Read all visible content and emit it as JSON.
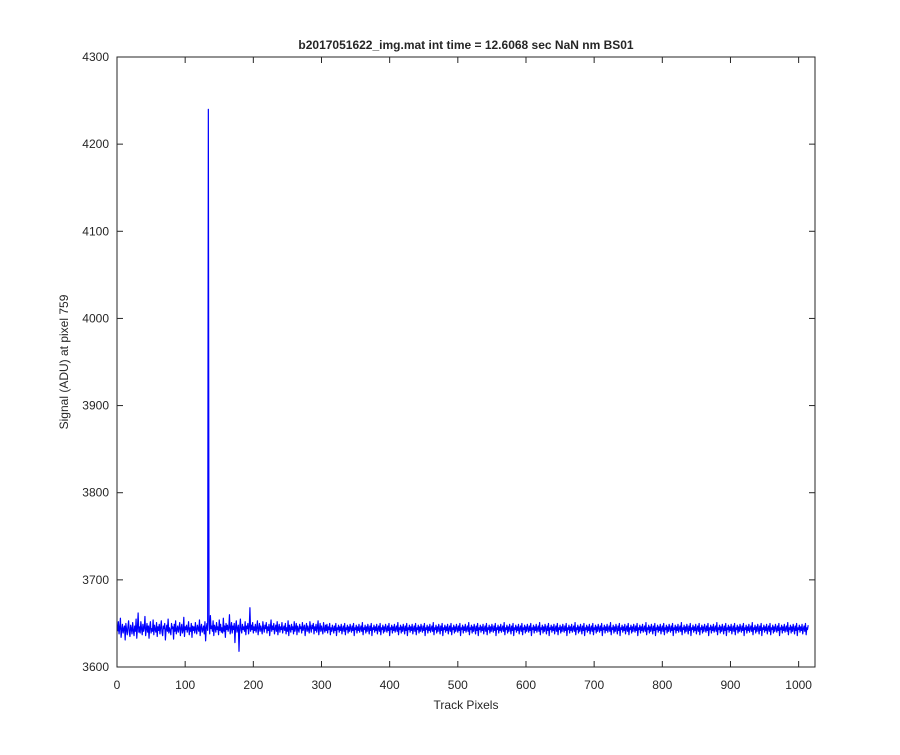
{
  "chart_data": {
    "type": "line",
    "title": "b2017051622_img.mat int time = 12.6068 sec  NaN nm BS01",
    "xlabel": "Track Pixels",
    "ylabel": "Signal (ADU) at pixel 759",
    "xlim": [
      0,
      1024
    ],
    "ylim": [
      3600,
      4300
    ],
    "xticks": [
      0,
      100,
      200,
      300,
      400,
      500,
      600,
      700,
      800,
      900,
      1000
    ],
    "yticks": [
      3600,
      3700,
      3800,
      3900,
      4000,
      4100,
      4200,
      4300
    ],
    "grid": false,
    "legend": "none",
    "line_color": "#0000ff",
    "series": [
      {
        "x_start": 1,
        "x_step": 1,
        "values": [
          3641,
          3652,
          3638,
          3645,
          3656,
          3634,
          3642,
          3649,
          3639,
          3644,
          3647,
          3631,
          3650,
          3643,
          3637,
          3646,
          3653,
          3640,
          3635,
          3648,
          3644,
          3638,
          3651,
          3642,
          3636,
          3647,
          3641,
          3655,
          3633,
          3645,
          3662,
          3640,
          3646,
          3639,
          3652,
          3644,
          3637,
          3649,
          3641,
          3645,
          3658,
          3636,
          3643,
          3650,
          3640,
          3647,
          3633,
          3646,
          3652,
          3639,
          3644,
          3641,
          3654,
          3637,
          3648,
          3643,
          3640,
          3651,
          3635,
          3646,
          3642,
          3649,
          3638,
          3645,
          3653,
          3640,
          3636,
          3647,
          3644,
          3650,
          3631,
          3643,
          3648,
          3641,
          3655,
          3639,
          3645,
          3642,
          3637,
          3650,
          3644,
          3646,
          3632,
          3649,
          3641,
          3653,
          3638,
          3643,
          3647,
          3640,
          3645,
          3651,
          3636,
          3644,
          3649,
          3639,
          3642,
          3657,
          3635,
          3646,
          3643,
          3648,
          3640,
          3644,
          3652,
          3637,
          3645,
          3641,
          3650,
          3634,
          3647,
          3642,
          3646,
          3639,
          3651,
          3643,
          3638,
          3648,
          3644,
          3641,
          3654,
          3636,
          3645,
          3649,
          3640,
          3643,
          3647,
          3638,
          3652,
          3630,
          3645,
          3650,
          3642,
          4240,
          3652,
          3638,
          3659,
          3644,
          3647,
          3641,
          3653,
          3636,
          3648,
          3645,
          3640,
          3651,
          3643,
          3646,
          3637,
          3654,
          3642,
          3649,
          3640,
          3645,
          3639,
          3656,
          3641,
          3647,
          3634,
          3650,
          3643,
          3648,
          3641,
          3645,
          3660,
          3638,
          3644,
          3651,
          3639,
          3647,
          3643,
          3650,
          3628,
          3646,
          3653,
          3640,
          3644,
          3648,
          3618,
          3645,
          3655,
          3642,
          3639,
          3649,
          3643,
          3646,
          3641,
          3652,
          3637,
          3647,
          3644,
          3650,
          3638,
          3645,
          3668,
          3641,
          3648,
          3643,
          3651,
          3639,
          3646,
          3642,
          3649,
          3640,
          3645,
          3653,
          3637,
          3644,
          3650,
          3641,
          3647,
          3643,
          3638,
          3652,
          3645,
          3640,
          3648,
          3644,
          3651,
          3639,
          3646,
          3642,
          3649,
          3636,
          3645,
          3654,
          3641,
          3647,
          3643,
          3650,
          3638,
          3644,
          3648,
          3641,
          3652,
          3637,
          3645,
          3649,
          3640,
          3646,
          3643,
          3651,
          3639,
          3644,
          3647,
          3642,
          3650,
          3638,
          3645,
          3641,
          3653,
          3636,
          3648,
          3644,
          3640,
          3649,
          3643,
          3646,
          3638,
          3652,
          3641,
          3645,
          3650,
          3637,
          3647,
          3643,
          3640,
          3649,
          3644,
          3646,
          3639,
          3651,
          3642,
          3645,
          3648,
          3636,
          3644,
          3650,
          3641,
          3647,
          3643,
          3639,
          3652,
          3645,
          3640,
          3648,
          3644,
          3650,
          3638,
          3646,
          3642,
          3649,
          3640,
          3645,
          3653,
          3637,
          3644,
          3650,
          3641,
          3647,
          3643,
          3638,
          3651,
          3644,
          3640,
          3648,
          3642,
          3649,
          3639,
          3646,
          3643,
          3650,
          3637,
          3645,
          3641,
          3648,
          3644,
          3639,
          3647,
          3642,
          3650,
          3636,
          3645,
          3643,
          3648,
          3640,
          3646,
          3642,
          3649,
          3638,
          3644,
          3647,
          3641,
          3650,
          3637,
          3645,
          3643,
          3648,
          3639,
          3646,
          3641,
          3649,
          3644,
          3640,
          3647,
          3642,
          3650,
          3636,
          3645,
          3643,
          3648,
          3639,
          3646,
          3642,
          3649,
          3640,
          3644,
          3647,
          3641,
          3651,
          3637,
          3645,
          3643,
          3648,
          3639,
          3646,
          3641,
          3649,
          3644,
          3638,
          3647,
          3642,
          3650,
          3636,
          3645,
          3643,
          3648,
          3640,
          3646,
          3642,
          3649,
          3638,
          3644,
          3647,
          3641,
          3650,
          3637,
          3645,
          3643,
          3648,
          3639,
          3646,
          3641,
          3649,
          3644,
          3640,
          3647,
          3642,
          3650,
          3636,
          3645,
          3643,
          3648,
          3639,
          3646,
          3642,
          3649,
          3640,
          3644,
          3647,
          3641,
          3651,
          3637,
          3645,
          3643,
          3648,
          3639,
          3646,
          3641,
          3649,
          3644,
          3638,
          3647,
          3642,
          3650,
          3636,
          3645,
          3643,
          3648,
          3640,
          3646,
          3642,
          3649,
          3638,
          3644,
          3647,
          3641,
          3650,
          3637,
          3645,
          3643,
          3648,
          3639,
          3646,
          3641,
          3649,
          3644,
          3640,
          3647,
          3642,
          3650,
          3636,
          3645,
          3643,
          3648,
          3639,
          3646,
          3642,
          3649,
          3640,
          3644,
          3647,
          3641,
          3651,
          3637,
          3645,
          3643,
          3648,
          3639,
          3646,
          3641,
          3649,
          3644,
          3638,
          3647,
          3642,
          3650,
          3636,
          3645,
          3643,
          3648,
          3640,
          3646,
          3642,
          3649,
          3638,
          3644,
          3647,
          3641,
          3650,
          3637,
          3645,
          3643,
          3648,
          3639,
          3646,
          3641,
          3649,
          3644,
          3640,
          3647,
          3642,
          3650,
          3636,
          3645,
          3643,
          3648,
          3639,
          3646,
          3642,
          3649,
          3640,
          3644,
          3647,
          3641,
          3651,
          3637,
          3645,
          3643,
          3648,
          3639,
          3646,
          3641,
          3649,
          3644,
          3638,
          3647,
          3642,
          3650,
          3636,
          3645,
          3643,
          3648,
          3640,
          3646,
          3642,
          3649,
          3638,
          3644,
          3647,
          3641,
          3650,
          3637,
          3645,
          3643,
          3648,
          3639,
          3646,
          3641,
          3649,
          3644,
          3640,
          3647,
          3642,
          3650,
          3636,
          3645,
          3643,
          3648,
          3639,
          3646,
          3642,
          3649,
          3640,
          3644,
          3647,
          3641,
          3651,
          3637,
          3645,
          3643,
          3648,
          3639,
          3646,
          3641,
          3649,
          3644,
          3638,
          3647,
          3642,
          3650,
          3636,
          3645,
          3643,
          3648,
          3640,
          3646,
          3642,
          3649,
          3638,
          3644,
          3647,
          3641,
          3650,
          3637,
          3645,
          3643,
          3648,
          3639,
          3646,
          3641,
          3649,
          3644,
          3640,
          3647,
          3642,
          3650,
          3636,
          3645,
          3643,
          3648,
          3639,
          3646,
          3642,
          3649,
          3640,
          3644,
          3647,
          3641,
          3651,
          3637,
          3645,
          3643,
          3648,
          3639,
          3646,
          3641,
          3649,
          3644,
          3638,
          3647,
          3642,
          3650,
          3636,
          3645,
          3643,
          3648,
          3640,
          3646,
          3642,
          3649,
          3638,
          3644,
          3647,
          3641,
          3650,
          3637,
          3645,
          3643,
          3648,
          3639,
          3646,
          3641,
          3649,
          3644,
          3640,
          3647,
          3642,
          3650,
          3636,
          3645,
          3643,
          3648,
          3639,
          3646,
          3642,
          3649,
          3640,
          3644,
          3647,
          3641,
          3651,
          3637,
          3645,
          3643,
          3648,
          3639,
          3646,
          3641,
          3649,
          3644,
          3638,
          3647,
          3642,
          3650,
          3636,
          3645,
          3643,
          3648,
          3640,
          3646,
          3642,
          3649,
          3638,
          3644,
          3647,
          3641,
          3650,
          3637,
          3645,
          3643,
          3648,
          3639,
          3646,
          3641,
          3649,
          3644,
          3640,
          3647,
          3642,
          3650,
          3636,
          3645,
          3643,
          3648,
          3639,
          3646,
          3642,
          3649,
          3640,
          3644,
          3647,
          3641,
          3651,
          3637,
          3645,
          3643,
          3648,
          3639,
          3646,
          3641,
          3649,
          3644,
          3638,
          3647,
          3642,
          3650,
          3636,
          3645,
          3643,
          3648,
          3640,
          3646,
          3642,
          3649,
          3638,
          3644,
          3647,
          3641,
          3650,
          3637,
          3645,
          3643,
          3648,
          3639,
          3646,
          3641,
          3649,
          3644,
          3640,
          3647,
          3642,
          3650,
          3636,
          3645,
          3643,
          3648,
          3639,
          3646,
          3642,
          3649,
          3640,
          3644,
          3647,
          3641,
          3651,
          3637,
          3645,
          3643,
          3648,
          3639,
          3646,
          3641,
          3649,
          3644,
          3638,
          3647,
          3642,
          3650,
          3636,
          3645,
          3643,
          3648,
          3640,
          3646,
          3642,
          3649,
          3638,
          3644,
          3647,
          3641,
          3650,
          3637,
          3645,
          3643,
          3648,
          3639,
          3646,
          3641,
          3649,
          3644,
          3640,
          3647,
          3642,
          3650,
          3636,
          3645,
          3643,
          3648,
          3639,
          3646,
          3642,
          3649,
          3640,
          3644,
          3647,
          3641,
          3651,
          3637,
          3645,
          3643,
          3648,
          3639,
          3646,
          3641,
          3649,
          3644,
          3638,
          3647,
          3642,
          3650,
          3636,
          3645,
          3643,
          3648,
          3640,
          3646,
          3642,
          3649,
          3638,
          3644,
          3647,
          3641,
          3650,
          3637,
          3645,
          3643,
          3648,
          3639,
          3646,
          3641,
          3649,
          3644,
          3640,
          3647,
          3642,
          3650,
          3636,
          3645,
          3643,
          3648,
          3639,
          3646,
          3642,
          3649,
          3640,
          3644,
          3647,
          3641,
          3651,
          3637,
          3645,
          3643,
          3648,
          3639,
          3646,
          3641,
          3649,
          3644,
          3638,
          3647,
          3642,
          3650,
          3636,
          3645,
          3643,
          3648,
          3640,
          3646,
          3642,
          3649,
          3638,
          3644,
          3647,
          3641,
          3650,
          3637,
          3645,
          3643,
          3648,
          3639,
          3646,
          3641,
          3649,
          3644,
          3640,
          3647,
          3642,
          3650,
          3636,
          3645,
          3643,
          3648,
          3639,
          3646,
          3642,
          3649,
          3640,
          3644,
          3647,
          3641,
          3651,
          3637,
          3645,
          3643,
          3648,
          3639,
          3646,
          3641,
          3649,
          3644,
          3638,
          3647,
          3642,
          3650,
          3636,
          3645,
          3643,
          3648,
          3640,
          3646,
          3642,
          3649,
          3638,
          3644,
          3647,
          3641,
          3650,
          3637,
          3645,
          3643,
          3648,
          3639,
          3646,
          3641,
          3649,
          3644,
          3640,
          3647,
          3642,
          3650,
          3636,
          3645,
          3643,
          3648,
          3639,
          3646,
          3642,
          3649,
          3640,
          3644,
          3647,
          3641,
          3651,
          3637,
          3645,
          3643,
          3648,
          3639,
          3646,
          3641,
          3649,
          3644,
          3638,
          3647,
          3642,
          3650,
          3636,
          3645,
          3643,
          3648,
          3640,
          3646,
          3642,
          3649,
          3638,
          3644,
          3647,
          3641,
          3650,
          3637,
          3645,
          3643,
          3648
        ]
      }
    ]
  }
}
